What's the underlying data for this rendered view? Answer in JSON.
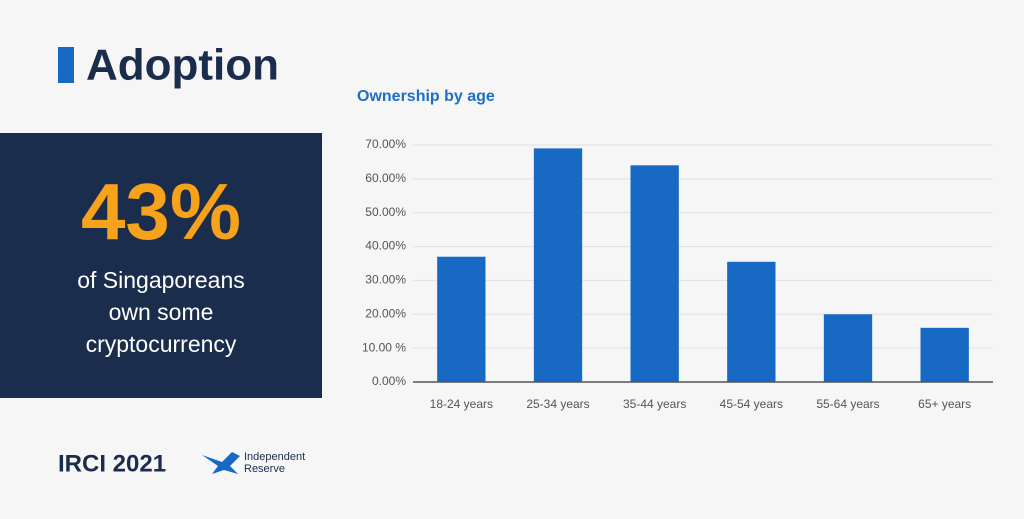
{
  "header": {
    "title": "Adoption"
  },
  "stat": {
    "value": "43%",
    "lines": [
      "of Singaporeans",
      "own some",
      "cryptocurrency"
    ]
  },
  "footer": {
    "label": "IRCI 2021",
    "logo": [
      "Independent",
      "Reserve"
    ]
  },
  "chart_data": {
    "type": "bar",
    "title": "Ownership by age",
    "categories": [
      "18-24 years",
      "25-34 years",
      "35-44 years",
      "45-54 years",
      "55-64 years",
      "65+ years"
    ],
    "values": [
      37,
      69,
      64,
      35.5,
      20,
      16
    ],
    "color": "#1769c4",
    "ylim": [
      0,
      70
    ],
    "yticks": [
      {
        "value": 0,
        "label": "0.00%"
      },
      {
        "value": 10,
        "label": "10.00 %"
      },
      {
        "value": 20,
        "label": "20.00%"
      },
      {
        "value": 30,
        "label": "30.00%"
      },
      {
        "value": 40,
        "label": "40.00%"
      },
      {
        "value": 50,
        "label": "50.00%"
      },
      {
        "value": 60,
        "label": "60.00%"
      },
      {
        "value": 70,
        "label": "70.00%"
      }
    ],
    "grid": true
  }
}
